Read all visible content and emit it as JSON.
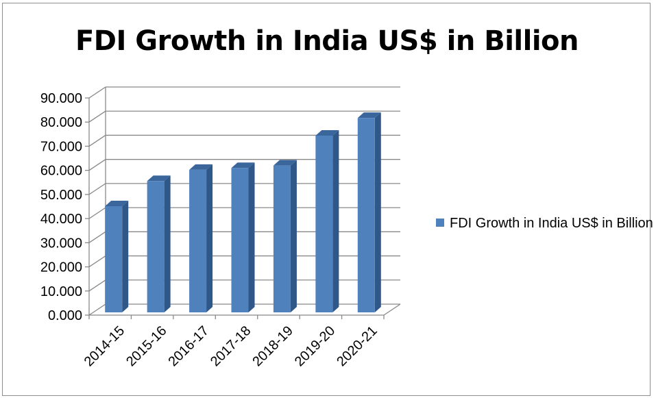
{
  "chart_data": {
    "type": "bar",
    "title": "FDI Growth in India US$ in Billion",
    "categories": [
      "2014-15",
      "2015-16",
      "2016-17",
      "2017-18",
      "2018-19",
      "2019-20",
      "2020-21"
    ],
    "series": [
      {
        "name": "FDI Growth in India US$ in Billion",
        "values": [
          45.15,
          55.56,
          60.22,
          60.97,
          62.0,
          74.39,
          81.72
        ]
      }
    ],
    "y_ticks": [
      "0.000",
      "10.000",
      "20.000",
      "30.000",
      "40.000",
      "50.000",
      "60.000",
      "70.000",
      "80.000",
      "90.000"
    ],
    "ylim": [
      0,
      90
    ],
    "grid": true,
    "legend_position": "right",
    "colors": {
      "bar_front": "#4f81bd",
      "bar_side": "#2f5788",
      "bar_top": "#3a669c",
      "grid": "#888888"
    }
  },
  "legend": {
    "label": "FDI Growth in India US$ in Billion"
  }
}
